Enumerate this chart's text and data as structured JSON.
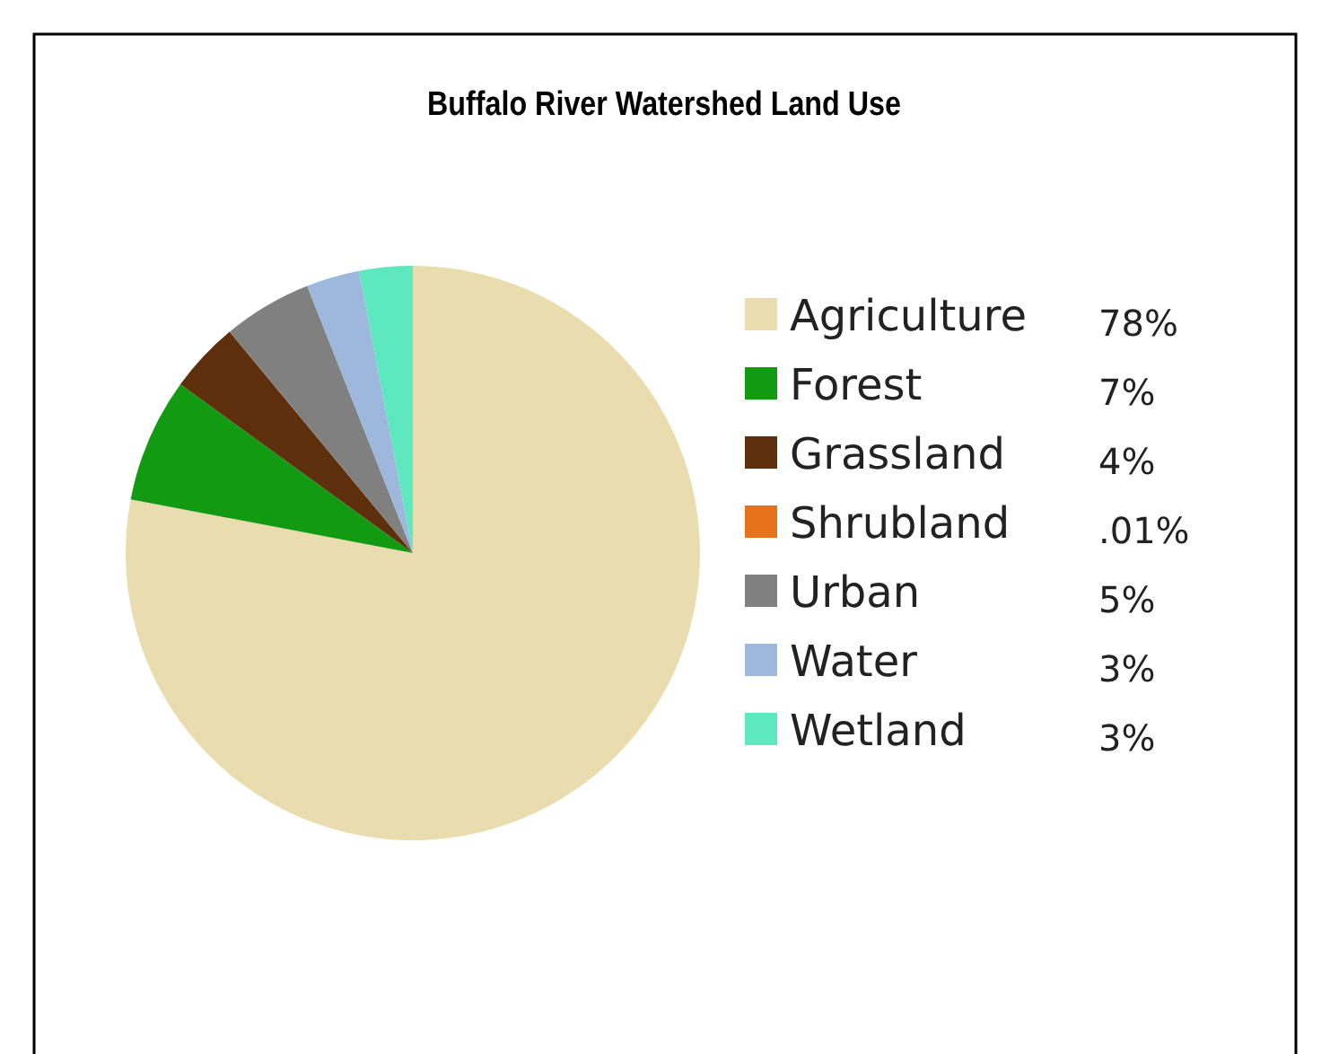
{
  "chart_data": {
    "type": "pie",
    "title": "Buffalo River Watershed Land Use",
    "categories": [
      "Agriculture",
      "Forest",
      "Grassland",
      "Shrubland",
      "Urban",
      "Water",
      "Wetland"
    ],
    "values": [
      78,
      7,
      4,
      0.01,
      5,
      3,
      3
    ],
    "value_labels": [
      "78%",
      "7%",
      "4%",
      ".01%",
      "5%",
      "3%",
      "3%"
    ],
    "colors": [
      "#e9ddaf",
      "#129a12",
      "#5e2f0c",
      "#e8721c",
      "#808080",
      "#9db7dd",
      "#5ee8c0"
    ],
    "legend": "right"
  }
}
